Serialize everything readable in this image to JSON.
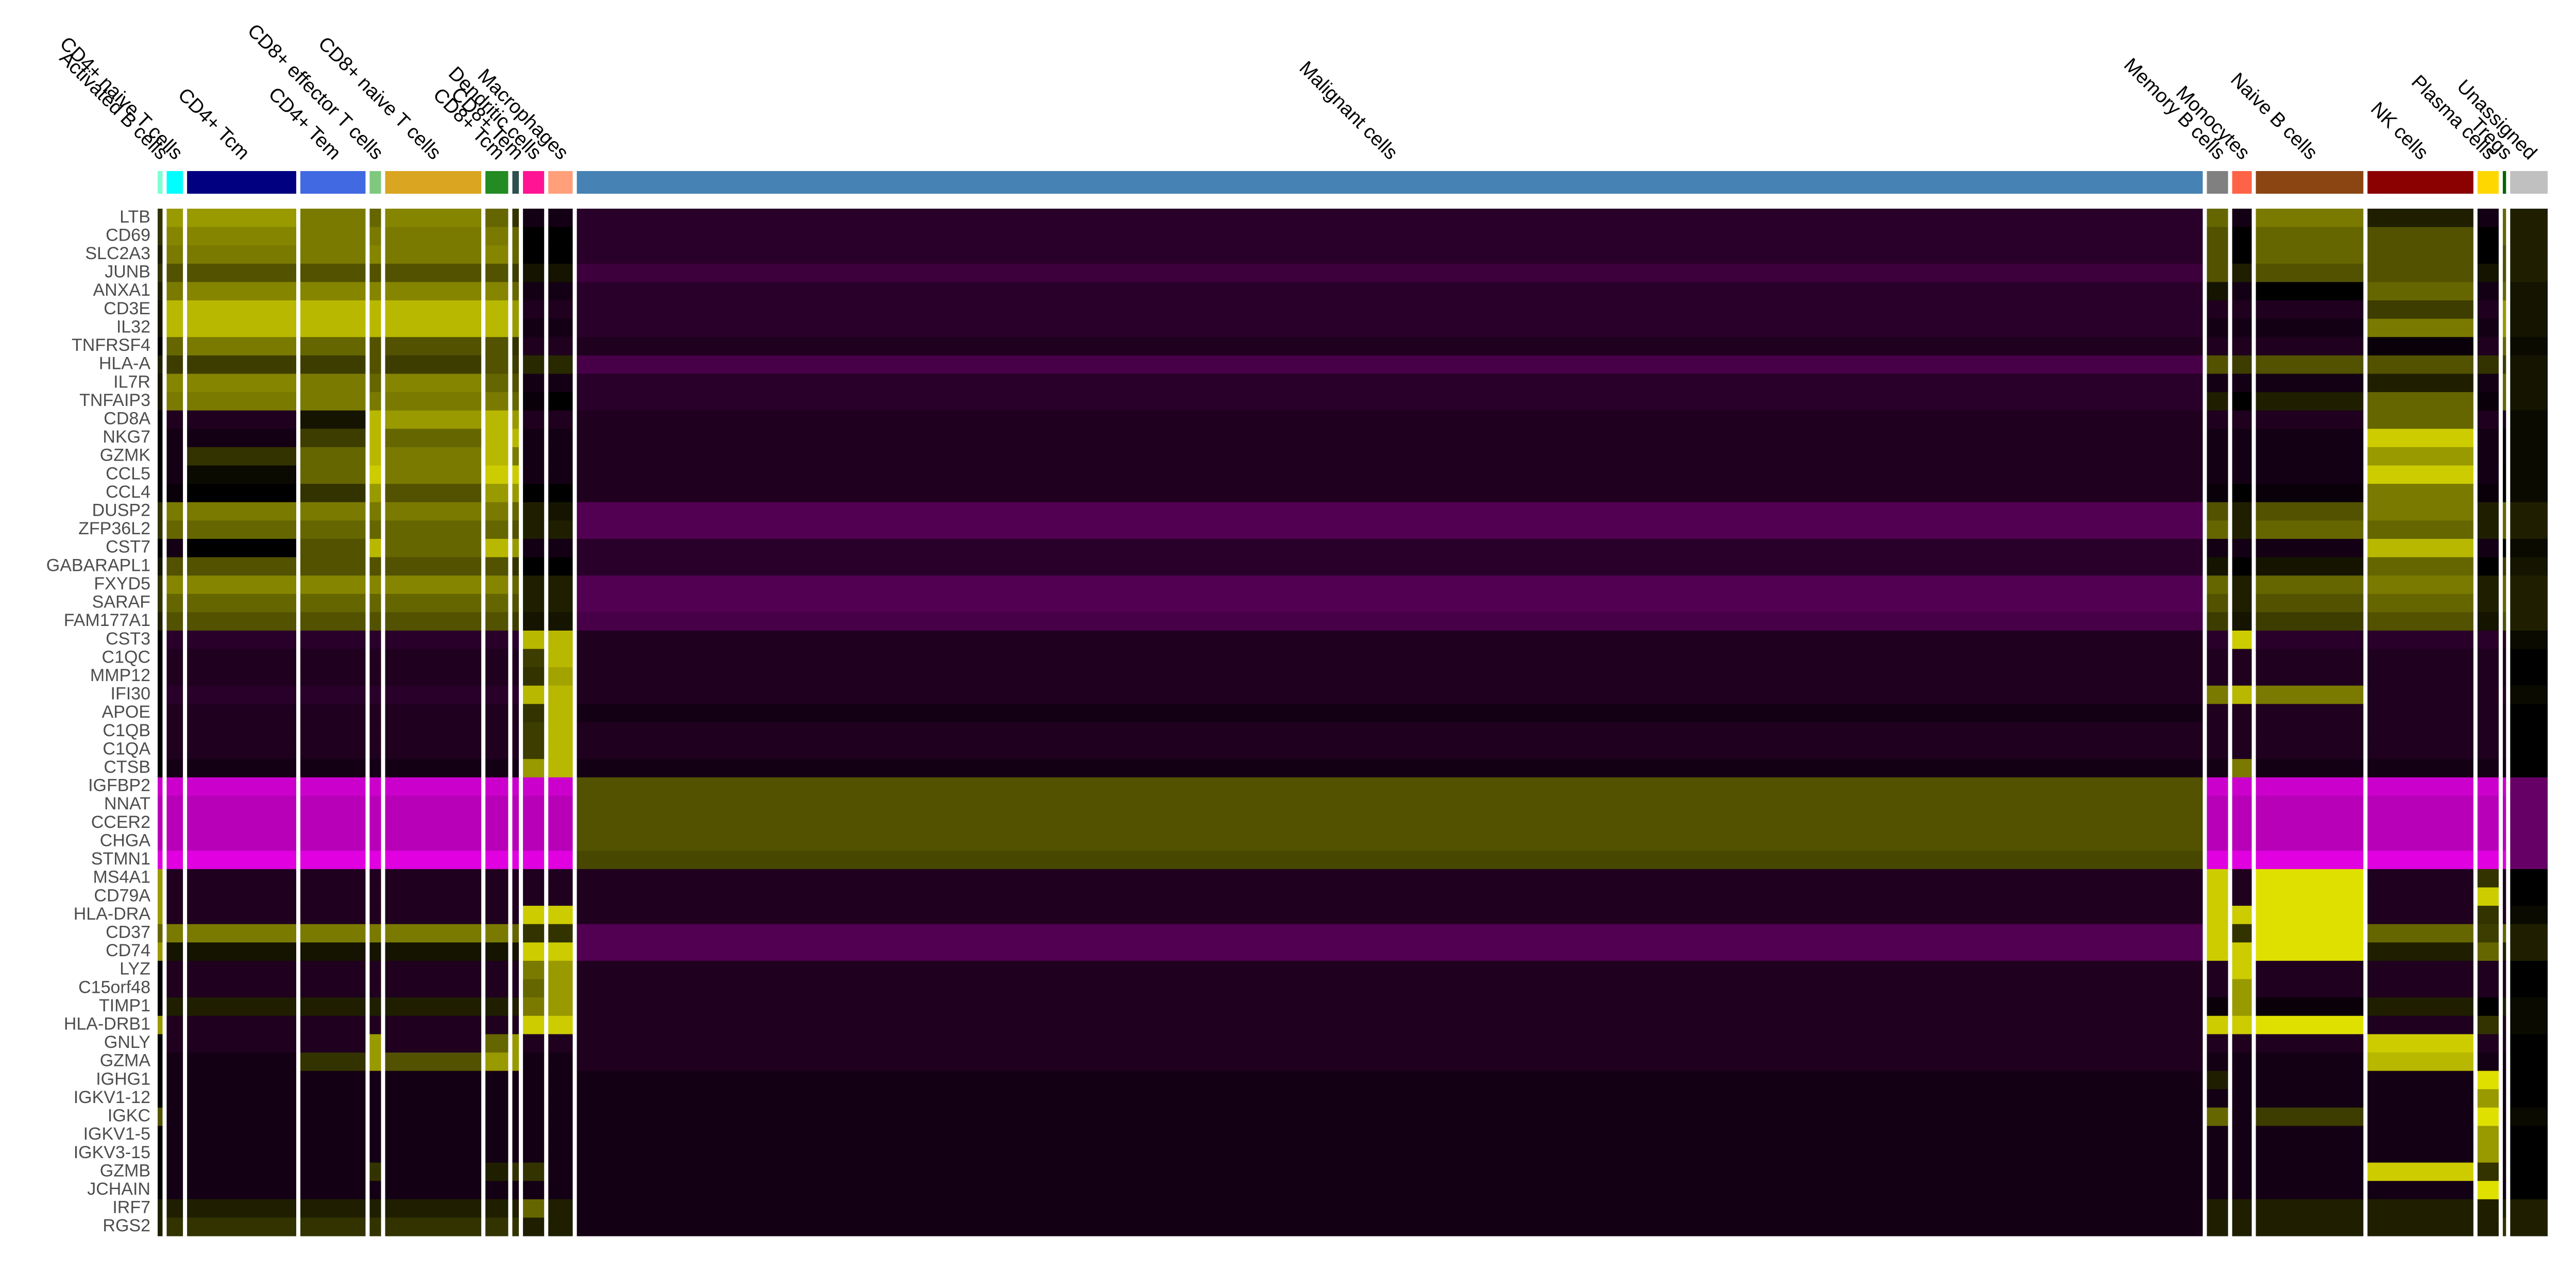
{
  "chart_data": {
    "type": "heatmap",
    "groups": [
      {
        "name": "Activated B cells",
        "color": "#7FFFD4",
        "size": 3
      },
      {
        "name": "CD4+ naive T cells",
        "color": "#00FFFF",
        "size": 10
      },
      {
        "name": "CD4+ Tcm",
        "color": "#000080",
        "size": 67
      },
      {
        "name": "CD4+ Tem",
        "color": "#4169E1",
        "size": 40
      },
      {
        "name": "CD8+ effector T cells",
        "color": "#7FC97F",
        "size": 7
      },
      {
        "name": "CD8+ naive T cells",
        "color": "#DAA520",
        "size": 59
      },
      {
        "name": "CD8+ Tcm",
        "color": "#228B22",
        "size": 14
      },
      {
        "name": "CD8+ Tem",
        "color": "#2F4F4F",
        "size": 4
      },
      {
        "name": "Dendritic cells",
        "color": "#FF1493",
        "size": 13
      },
      {
        "name": "Macrophages",
        "color": "#FFA07A",
        "size": 15
      },
      {
        "name": "Malignant cells",
        "color": "#4682B4",
        "size": 998
      },
      {
        "name": "Memory B cells",
        "color": "#808080",
        "size": 13
      },
      {
        "name": "Monocytes",
        "color": "#FF6347",
        "size": 12
      },
      {
        "name": "Naive B cells",
        "color": "#8B4513",
        "size": 66
      },
      {
        "name": "NK cells",
        "color": "#8B0000",
        "size": 65
      },
      {
        "name": "Plasma cells",
        "color": "#FFD700",
        "size": 13
      },
      {
        "name": "Tregs",
        "color": "#006400",
        "size": 2
      },
      {
        "name": "Unassigned",
        "color": "#C0C0C0",
        "size": 23
      }
    ],
    "genes": [
      "LTB",
      "CD69",
      "SLC2A3",
      "JUNB",
      "ANXA1",
      "CD3E",
      "IL32",
      "TNFRSF4",
      "HLA-A",
      "IL7R",
      "TNFAIP3",
      "CD8A",
      "NKG7",
      "GZMK",
      "CCL5",
      "CCL4",
      "DUSP2",
      "ZFP36L2",
      "CST7",
      "GABARAPL1",
      "FXYD5",
      "SARAF",
      "FAM177A1",
      "CST3",
      "C1QC",
      "MMP12",
      "IFI30",
      "APOE",
      "C1QB",
      "C1QA",
      "CTSB",
      "IGFBP2",
      "NNAT",
      "CCER2",
      "CHGA",
      "STMN1",
      "MS4A1",
      "CD79A",
      "HLA-DRA",
      "CD37",
      "CD74",
      "LYZ",
      "C15orf48",
      "TIMP1",
      "HLA-DRB1",
      "GNLY",
      "GZMA",
      "IGHG1",
      "IGKV1-12",
      "IGKC",
      "IGKV1-5",
      "IGKV3-15",
      "GZMB",
      "JCHAIN",
      "IRF7",
      "RGS2"
    ],
    "values": [
      [
        0.5,
        1.5,
        1.5,
        1.2,
        1.0,
        1.3,
        1.0,
        0.5,
        -0.2,
        -0.2,
        -0.4,
        1.0,
        -0.2,
        1.2,
        0.3,
        -0.2,
        1.0,
        0.3
      ],
      [
        0.5,
        1.3,
        1.3,
        1.2,
        1.2,
        1.2,
        1.2,
        1.0,
        0,
        0,
        -0.4,
        0.8,
        0,
        1.0,
        0.8,
        0,
        1.0,
        0.3
      ],
      [
        0.3,
        1.2,
        1.2,
        1.2,
        1.3,
        1.2,
        1.3,
        1.0,
        0,
        0,
        -0.4,
        0.8,
        0,
        1.0,
        0.8,
        0,
        0.8,
        0.3
      ],
      [
        0.5,
        0.8,
        0.8,
        0.8,
        0.8,
        0.8,
        0.8,
        0.6,
        0.2,
        0.2,
        -0.6,
        0.8,
        0.3,
        0.8,
        0.8,
        0.2,
        0.8,
        0.3
      ],
      [
        0.3,
        1.2,
        1.3,
        1.3,
        1.3,
        1.3,
        1.3,
        1.0,
        -0.2,
        -0.2,
        -0.4,
        0.2,
        -0.2,
        0,
        1.0,
        -0.2,
        1.0,
        0.2
      ],
      [
        0.2,
        1.8,
        1.8,
        1.8,
        1.8,
        1.8,
        1.8,
        1.5,
        -0.3,
        -0.3,
        -0.4,
        -0.3,
        -0.3,
        -0.3,
        0.6,
        -0.3,
        1.5,
        0.2
      ],
      [
        0.2,
        1.8,
        1.8,
        1.8,
        1.8,
        1.8,
        1.8,
        1.5,
        -0.2,
        -0.2,
        -0.4,
        -0.2,
        -0.2,
        -0.2,
        1.2,
        -0.2,
        1.5,
        0.2
      ],
      [
        0,
        1.0,
        1.2,
        1.0,
        0.8,
        0.8,
        0.8,
        0.5,
        -0.3,
        -0.3,
        -0.3,
        -0.3,
        -0.3,
        -0.3,
        -0.1,
        -0.3,
        1.0,
        0.1
      ],
      [
        0.3,
        0.6,
        0.6,
        0.6,
        0.8,
        0.6,
        0.8,
        0.6,
        0.4,
        0.4,
        -0.7,
        0.8,
        0.6,
        0.8,
        0.8,
        0.5,
        0.6,
        0.2
      ],
      [
        0.2,
        1.3,
        1.3,
        1.2,
        1.0,
        1.3,
        1.0,
        0.8,
        -0.2,
        -0.2,
        -0.4,
        -0.2,
        -0.2,
        -0.2,
        0.3,
        -0.2,
        1.0,
        0.2
      ],
      [
        0.2,
        1.2,
        1.2,
        1.2,
        1.2,
        1.2,
        1.2,
        1.0,
        -0.1,
        0,
        -0.4,
        0.3,
        0,
        0.3,
        1.0,
        -0.1,
        1.0,
        0.2
      ],
      [
        0,
        -0.3,
        -0.3,
        0.2,
        1.8,
        1.5,
        1.8,
        1.5,
        -0.3,
        -0.3,
        -0.3,
        -0.3,
        -0.3,
        -0.3,
        1.0,
        -0.3,
        -0.3,
        0.1
      ],
      [
        0,
        -0.2,
        -0.2,
        0.6,
        1.8,
        1.0,
        1.8,
        1.8,
        -0.2,
        -0.2,
        -0.3,
        -0.2,
        -0.2,
        -0.2,
        2.0,
        -0.2,
        -0.1,
        0.1
      ],
      [
        0,
        -0.2,
        0.5,
        1.0,
        1.8,
        1.2,
        1.8,
        1.2,
        -0.2,
        -0.2,
        -0.3,
        -0.2,
        -0.2,
        -0.2,
        1.5,
        -0.2,
        -0.1,
        0.1
      ],
      [
        0,
        -0.2,
        0.1,
        1.0,
        2.0,
        1.2,
        2.0,
        2.0,
        -0.2,
        -0.2,
        -0.3,
        -0.2,
        -0.2,
        -0.2,
        2.0,
        -0.2,
        0,
        0.1
      ],
      [
        0,
        -0.1,
        0,
        0.5,
        1.5,
        0.8,
        1.5,
        1.5,
        0,
        0,
        -0.3,
        -0.1,
        0,
        -0.1,
        1.2,
        -0.1,
        0,
        0.1
      ],
      [
        0.5,
        1.2,
        1.2,
        1.2,
        1.2,
        1.2,
        1.2,
        1.0,
        0.3,
        0.2,
        -0.8,
        0.8,
        0.3,
        0.8,
        1.2,
        0.3,
        1.0,
        0.3
      ],
      [
        0.5,
        1.0,
        1.0,
        1.0,
        1.0,
        1.0,
        1.0,
        0.8,
        0.3,
        0.3,
        -0.8,
        1.0,
        0.3,
        1.0,
        1.0,
        0.3,
        1.0,
        0.3
      ],
      [
        0,
        -0.2,
        0,
        0.8,
        1.8,
        1.0,
        1.8,
        1.5,
        -0.2,
        -0.2,
        -0.4,
        -0.2,
        -0.2,
        -0.2,
        1.8,
        -0.2,
        0,
        0.1
      ],
      [
        0.2,
        0.8,
        0.8,
        0.8,
        0.8,
        0.8,
        0.8,
        0.5,
        0,
        0,
        -0.4,
        0.2,
        0,
        0.2,
        1.0,
        0,
        0.6,
        0.2
      ],
      [
        0.5,
        1.3,
        1.3,
        1.3,
        1.3,
        1.3,
        1.3,
        1.0,
        0.3,
        0.3,
        -0.8,
        1.0,
        0.3,
        1.0,
        1.2,
        0.3,
        1.0,
        0.3
      ],
      [
        0.5,
        1.0,
        1.0,
        1.0,
        1.0,
        1.0,
        1.0,
        0.8,
        0.3,
        0.3,
        -0.8,
        0.8,
        0.3,
        0.8,
        1.0,
        0.3,
        1.0,
        0.3
      ],
      [
        0.3,
        0.8,
        0.8,
        0.8,
        0.8,
        0.8,
        0.8,
        0.6,
        0.2,
        0.2,
        -0.7,
        0.6,
        0.2,
        0.6,
        0.8,
        0.2,
        0.8,
        0.3
      ],
      [
        0,
        -0.4,
        -0.4,
        -0.4,
        -0.4,
        -0.4,
        -0.4,
        -0.4,
        1.8,
        1.8,
        -0.3,
        -0.4,
        2.0,
        -0.4,
        -0.4,
        -0.4,
        -0.4,
        0.1
      ],
      [
        0,
        -0.3,
        -0.3,
        -0.3,
        -0.3,
        -0.3,
        -0.3,
        -0.3,
        0.6,
        1.8,
        -0.3,
        -0.3,
        -0.3,
        -0.3,
        -0.3,
        -0.3,
        -0.3,
        0
      ],
      [
        0,
        -0.3,
        -0.3,
        -0.3,
        -0.3,
        -0.3,
        -0.3,
        -0.3,
        0.5,
        1.6,
        -0.3,
        -0.3,
        -0.3,
        -0.3,
        -0.3,
        -0.3,
        -0.3,
        0
      ],
      [
        0,
        -0.4,
        -0.4,
        -0.4,
        -0.4,
        -0.4,
        -0.4,
        -0.4,
        1.8,
        1.8,
        -0.3,
        1.2,
        1.8,
        1.2,
        -0.3,
        -0.3,
        -0.4,
        0.1
      ],
      [
        0,
        -0.3,
        -0.3,
        -0.3,
        -0.3,
        -0.3,
        -0.3,
        -0.3,
        0.5,
        1.8,
        -0.2,
        -0.3,
        -0.3,
        -0.3,
        -0.3,
        -0.3,
        -0.3,
        0
      ],
      [
        0,
        -0.3,
        -0.3,
        -0.3,
        -0.3,
        -0.3,
        -0.3,
        -0.3,
        0.6,
        1.8,
        -0.3,
        -0.3,
        -0.3,
        -0.3,
        -0.3,
        -0.3,
        -0.3,
        0
      ],
      [
        0,
        -0.3,
        -0.3,
        -0.3,
        -0.3,
        -0.3,
        -0.3,
        -0.3,
        0.6,
        1.8,
        -0.3,
        -0.3,
        -0.3,
        -0.3,
        -0.3,
        -0.3,
        -0.3,
        0
      ],
      [
        0,
        -0.2,
        -0.2,
        -0.2,
        -0.2,
        -0.2,
        -0.2,
        -0.2,
        1.5,
        1.8,
        -0.2,
        -0.2,
        1.2,
        -0.2,
        -0.2,
        -0.2,
        -0.2,
        0
      ],
      [
        -2.0,
        -2.0,
        -2.0,
        -2.0,
        -2.0,
        -2.0,
        -2.0,
        -2.0,
        -2.0,
        -2.0,
        0.8,
        -2.0,
        -2.0,
        -2.0,
        -2.0,
        -2.0,
        -2.0,
        -1.0
      ],
      [
        -1.8,
        -1.8,
        -1.8,
        -1.8,
        -1.8,
        -1.8,
        -1.8,
        -1.8,
        -1.8,
        -1.8,
        0.8,
        -1.8,
        -1.8,
        -1.8,
        -1.8,
        -1.8,
        -1.8,
        -1.0
      ],
      [
        -1.8,
        -1.8,
        -1.8,
        -1.8,
        -1.8,
        -1.8,
        -1.8,
        -1.8,
        -1.8,
        -1.8,
        0.8,
        -1.8,
        -1.8,
        -1.8,
        -1.8,
        -1.8,
        -1.8,
        -1.0
      ],
      [
        -1.8,
        -1.8,
        -1.8,
        -1.8,
        -1.8,
        -1.8,
        -1.8,
        -1.8,
        -1.8,
        -1.8,
        0.8,
        -1.8,
        -1.8,
        -1.8,
        -1.8,
        -1.8,
        -1.8,
        -1.0
      ],
      [
        -2.2,
        -2.2,
        -2.2,
        -2.2,
        -2.2,
        -2.2,
        -2.2,
        -2.2,
        -2.2,
        -2.2,
        0.7,
        -2.2,
        -2.2,
        -2.2,
        -2.2,
        -2.2,
        -2.2,
        -1.0
      ],
      [
        1.5,
        -0.3,
        -0.3,
        -0.3,
        -0.3,
        -0.3,
        -0.3,
        -0.3,
        -0.3,
        -0.3,
        -0.3,
        2.0,
        -0.3,
        2.2,
        -0.3,
        0.5,
        -0.3,
        0
      ],
      [
        1.5,
        -0.3,
        -0.3,
        -0.3,
        -0.3,
        -0.3,
        -0.3,
        -0.3,
        -0.3,
        -0.3,
        -0.3,
        2.0,
        -0.3,
        2.2,
        -0.3,
        2.0,
        -0.3,
        0
      ],
      [
        1.5,
        -0.3,
        -0.3,
        -0.3,
        -0.3,
        -0.3,
        -0.3,
        -0.3,
        2.0,
        2.0,
        -0.3,
        2.0,
        2.0,
        2.2,
        -0.3,
        0.5,
        -0.3,
        0.1
      ],
      [
        1.0,
        1.2,
        1.2,
        1.2,
        1.2,
        1.2,
        1.2,
        1.0,
        0.5,
        0.5,
        -0.8,
        2.0,
        0.5,
        2.2,
        1.0,
        0.6,
        1.0,
        0.3
      ],
      [
        1.5,
        0.2,
        0.2,
        0.2,
        0.2,
        0.2,
        0.2,
        0.2,
        2.0,
        2.0,
        -0.8,
        2.0,
        2.0,
        2.2,
        0.3,
        1.0,
        0.3,
        0.3
      ],
      [
        0,
        -0.3,
        -0.3,
        -0.3,
        -0.3,
        -0.3,
        -0.3,
        -0.3,
        1.2,
        1.5,
        -0.3,
        -0.3,
        2.0,
        -0.3,
        -0.3,
        -0.3,
        -0.3,
        0
      ],
      [
        0,
        -0.3,
        -0.3,
        -0.3,
        -0.3,
        -0.3,
        -0.3,
        -0.3,
        1.0,
        1.5,
        -0.3,
        -0.3,
        1.5,
        -0.3,
        -0.3,
        -0.3,
        -0.3,
        0
      ],
      [
        0,
        0.3,
        0.3,
        0.3,
        0.3,
        0.3,
        0.3,
        0.3,
        1.2,
        1.5,
        -0.3,
        -0.1,
        1.5,
        -0.1,
        0.3,
        0,
        0.3,
        0.1
      ],
      [
        1.5,
        -0.3,
        -0.3,
        -0.3,
        -0.3,
        -0.3,
        -0.3,
        -0.3,
        2.0,
        2.0,
        -0.3,
        2.0,
        2.0,
        2.2,
        -0.3,
        0.5,
        -0.3,
        0.1
      ],
      [
        0,
        -0.3,
        -0.3,
        -0.3,
        1.5,
        -0.3,
        1.0,
        1.5,
        -0.3,
        -0.3,
        -0.3,
        -0.3,
        -0.3,
        -0.3,
        2.0,
        -0.3,
        -0.3,
        0
      ],
      [
        0,
        -0.2,
        -0.2,
        0.5,
        1.5,
        0.8,
        1.5,
        1.5,
        -0.2,
        -0.2,
        -0.3,
        -0.2,
        -0.2,
        -0.2,
        1.8,
        -0.2,
        -0.2,
        0
      ],
      [
        0,
        -0.2,
        -0.2,
        -0.2,
        -0.2,
        -0.2,
        -0.2,
        -0.2,
        -0.2,
        -0.2,
        -0.2,
        0.3,
        -0.2,
        -0.2,
        -0.2,
        2.2,
        -0.2,
        0
      ],
      [
        0,
        -0.2,
        -0.2,
        -0.2,
        -0.2,
        -0.2,
        -0.2,
        -0.2,
        -0.2,
        -0.2,
        -0.2,
        -0.2,
        -0.2,
        -0.2,
        -0.2,
        1.5,
        -0.2,
        0
      ],
      [
        0.8,
        -0.2,
        -0.2,
        -0.2,
        -0.2,
        -0.2,
        -0.2,
        -0.2,
        -0.2,
        -0.2,
        -0.2,
        1.0,
        -0.2,
        0.6,
        -0.2,
        2.2,
        -0.2,
        0.1
      ],
      [
        0,
        -0.2,
        -0.2,
        -0.2,
        -0.2,
        -0.2,
        -0.2,
        -0.2,
        -0.2,
        -0.2,
        -0.2,
        -0.2,
        -0.2,
        -0.2,
        -0.2,
        1.5,
        -0.2,
        0
      ],
      [
        0,
        -0.2,
        -0.2,
        -0.2,
        -0.2,
        -0.2,
        -0.2,
        -0.2,
        -0.2,
        -0.2,
        -0.2,
        -0.2,
        -0.2,
        -0.2,
        -0.2,
        1.5,
        -0.2,
        0
      ],
      [
        0,
        -0.2,
        -0.2,
        -0.2,
        0.5,
        -0.2,
        0.3,
        0.5,
        0.5,
        -0.2,
        -0.2,
        -0.2,
        -0.2,
        -0.2,
        2.0,
        0.5,
        -0.2,
        0
      ],
      [
        0,
        -0.2,
        -0.2,
        -0.2,
        -0.2,
        -0.2,
        -0.2,
        -0.2,
        -0.2,
        -0.2,
        -0.2,
        -0.2,
        -0.2,
        -0.2,
        -0.2,
        2.2,
        -0.2,
        0
      ],
      [
        0.3,
        0.3,
        0.3,
        0.3,
        0.3,
        0.3,
        0.3,
        0.3,
        1.0,
        0.3,
        -0.2,
        0.3,
        0.3,
        0.3,
        0.3,
        0.3,
        0.3,
        0.3
      ],
      [
        0.3,
        0.5,
        0.5,
        0.5,
        0.5,
        0.5,
        0.5,
        0.5,
        0.3,
        0.3,
        -0.2,
        0.3,
        0.3,
        0.3,
        0.3,
        0.3,
        0.5,
        0.3
      ]
    ],
    "color_scale": [
      "#FF00FF",
      "#000000",
      "#FFFF00"
    ],
    "color_limits": [
      -2.5,
      2.5
    ]
  }
}
